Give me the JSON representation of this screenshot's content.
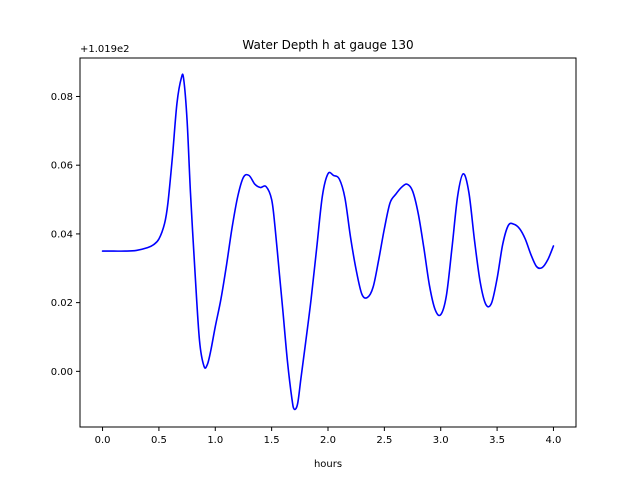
{
  "chart_data": {
    "type": "line",
    "title": "Water Depth h at gauge 130",
    "xlabel": "hours",
    "ylabel": "",
    "offset_text": "+1.019e2",
    "xlim": [
      -0.2,
      4.2
    ],
    "ylim": [
      -0.0162,
      0.0912
    ],
    "xticks": [
      0.0,
      0.5,
      1.0,
      1.5,
      2.0,
      2.5,
      3.0,
      3.5,
      4.0
    ],
    "xtick_labels": [
      "0.0",
      "0.5",
      "1.0",
      "1.5",
      "2.0",
      "2.5",
      "3.0",
      "3.5",
      "4.0"
    ],
    "yticks": [
      0.0,
      0.02,
      0.04,
      0.06,
      0.08
    ],
    "ytick_labels": [
      "0.00",
      "0.02",
      "0.04",
      "0.06",
      "0.08"
    ],
    "grid": false,
    "series": [
      {
        "color": "#0000ff",
        "x": [
          0.0,
          0.1,
          0.2,
          0.3,
          0.4,
          0.45,
          0.5,
          0.55,
          0.58,
          0.62,
          0.66,
          0.7,
          0.72,
          0.75,
          0.78,
          0.82,
          0.86,
          0.9,
          0.93,
          0.96,
          1.0,
          1.05,
          1.1,
          1.15,
          1.2,
          1.25,
          1.3,
          1.35,
          1.4,
          1.45,
          1.5,
          1.53,
          1.57,
          1.6,
          1.64,
          1.68,
          1.7,
          1.73,
          1.76,
          1.8,
          1.85,
          1.9,
          1.95,
          2.0,
          2.05,
          2.1,
          2.15,
          2.2,
          2.25,
          2.3,
          2.35,
          2.4,
          2.45,
          2.5,
          2.55,
          2.6,
          2.65,
          2.7,
          2.75,
          2.8,
          2.85,
          2.9,
          2.95,
          3.0,
          3.05,
          3.1,
          3.15,
          3.2,
          3.25,
          3.3,
          3.35,
          3.4,
          3.45,
          3.5,
          3.55,
          3.6,
          3.65,
          3.7,
          3.75,
          3.8,
          3.85,
          3.9,
          3.95,
          4.0
        ],
        "y": [
          0.035,
          0.035,
          0.035,
          0.0352,
          0.036,
          0.0368,
          0.0385,
          0.043,
          0.049,
          0.0625,
          0.078,
          0.0855,
          0.085,
          0.073,
          0.052,
          0.029,
          0.009,
          0.0015,
          0.002,
          0.006,
          0.013,
          0.021,
          0.031,
          0.042,
          0.051,
          0.0565,
          0.057,
          0.0545,
          0.0535,
          0.0538,
          0.05,
          0.042,
          0.028,
          0.0175,
          0.003,
          -0.008,
          -0.011,
          -0.0095,
          -0.002,
          0.008,
          0.021,
          0.036,
          0.051,
          0.0575,
          0.057,
          0.056,
          0.0505,
          0.039,
          0.0295,
          0.0225,
          0.0215,
          0.0245,
          0.0325,
          0.0415,
          0.049,
          0.0515,
          0.0535,
          0.0545,
          0.0525,
          0.046,
          0.036,
          0.025,
          0.018,
          0.0165,
          0.022,
          0.036,
          0.051,
          0.0575,
          0.052,
          0.038,
          0.026,
          0.0195,
          0.0198,
          0.027,
          0.037,
          0.0425,
          0.0428,
          0.0415,
          0.0385,
          0.034,
          0.0305,
          0.0302,
          0.0325,
          0.0365
        ]
      }
    ]
  }
}
